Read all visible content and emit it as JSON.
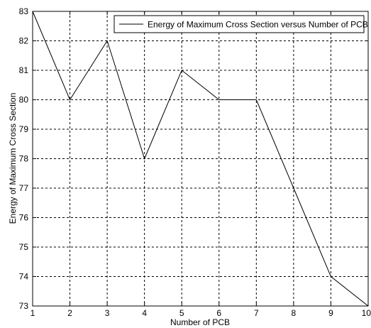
{
  "chart_data": {
    "type": "line",
    "title": "",
    "xlabel": "Number of PCB",
    "ylabel": "Energy of Maximum Cross Section",
    "xlim": [
      1,
      10
    ],
    "ylim": [
      73,
      83
    ],
    "xticks": [
      "1",
      "2",
      "3",
      "4",
      "5",
      "6",
      "7",
      "8",
      "9",
      "10"
    ],
    "yticks": [
      "73",
      "74",
      "75",
      "76",
      "77",
      "78",
      "79",
      "80",
      "81",
      "82",
      "83"
    ],
    "grid": true,
    "grid_style": "dashed",
    "legend_position": "top-right",
    "colors": {
      "line": "#000000",
      "grid": "#000000",
      "axes": "#000000",
      "background": "#ffffff"
    },
    "series": [
      {
        "name": "Energy of Maximum Cross Section versus Number of PCB",
        "x": [
          1,
          2,
          3,
          4,
          5,
          6,
          7,
          8,
          9,
          10
        ],
        "y": [
          83,
          80,
          82,
          78,
          81,
          80,
          80,
          77,
          74,
          73
        ]
      }
    ]
  }
}
